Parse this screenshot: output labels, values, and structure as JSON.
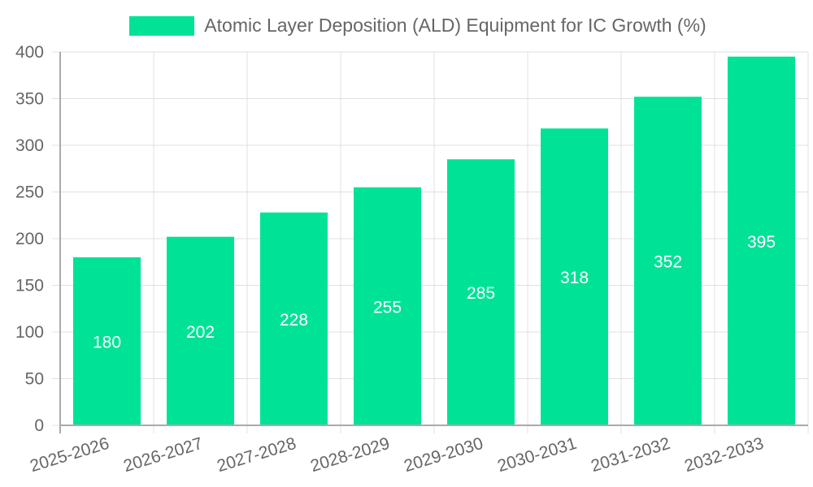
{
  "chart_data": {
    "type": "bar",
    "title": "",
    "legend": [
      {
        "label": "Atomic Layer Deposition (ALD) Equipment for IC Growth (%)",
        "color": "#00e396"
      }
    ],
    "legend_position": "top",
    "categories": [
      "2025-2026",
      "2026-2027",
      "2027-2028",
      "2028-2029",
      "2029-2030",
      "2030-2031",
      "2031-2032",
      "2032-2033"
    ],
    "series": [
      {
        "name": "Atomic Layer Deposition (ALD) Equipment for IC Growth (%)",
        "values": [
          180,
          202,
          228,
          255,
          285,
          318,
          352,
          395
        ],
        "color": "#00e396"
      }
    ],
    "xlabel": "",
    "ylabel": "",
    "ylim": [
      0,
      400
    ],
    "yticks": [
      0,
      50,
      100,
      150,
      200,
      250,
      300,
      350,
      400
    ],
    "grid": true,
    "data_labels": true
  },
  "legend": {
    "label": "Atomic Layer Deposition (ALD) Equipment for IC Growth (%)"
  }
}
